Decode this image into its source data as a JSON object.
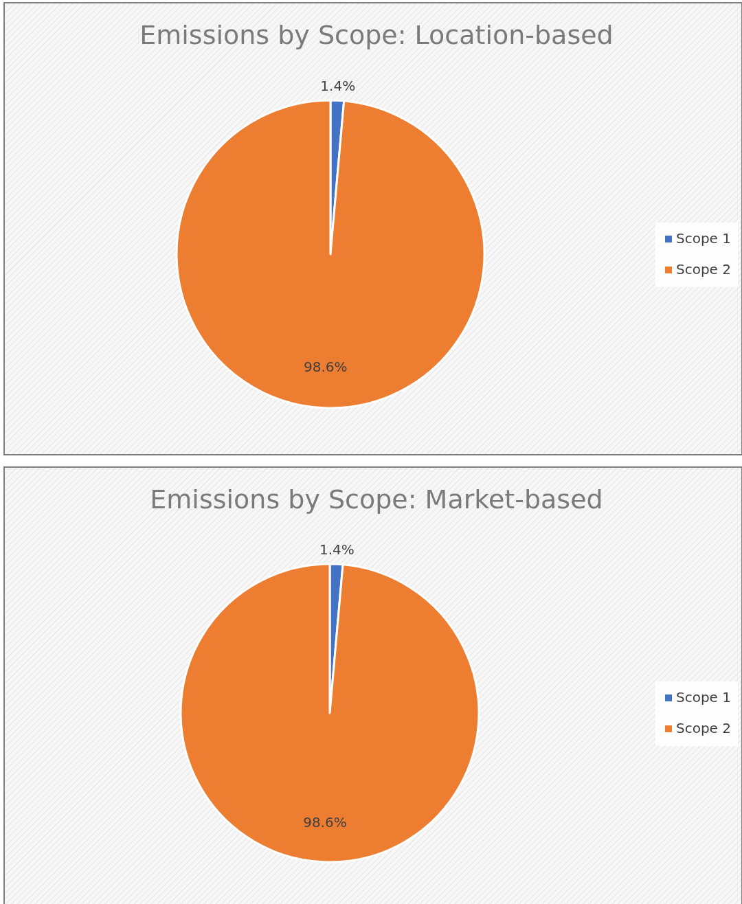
{
  "chart_data": [
    {
      "type": "pie",
      "title": "Emissions by Scope: Location-based",
      "categories": [
        "Scope 1",
        "Scope 2"
      ],
      "values": [
        1.4,
        98.6
      ],
      "colors": [
        "#4472c4",
        "#ed7d31"
      ],
      "value_labels": [
        "1.4%",
        "98.6%"
      ],
      "legend": "right"
    },
    {
      "type": "pie",
      "title": "Emissions by Scope: Market-based",
      "categories": [
        "Scope 1",
        "Scope 2"
      ],
      "values": [
        1.4,
        98.6
      ],
      "colors": [
        "#4472c4",
        "#ed7d31"
      ],
      "value_labels": [
        "1.4%",
        "98.6%"
      ],
      "legend": "right"
    }
  ]
}
